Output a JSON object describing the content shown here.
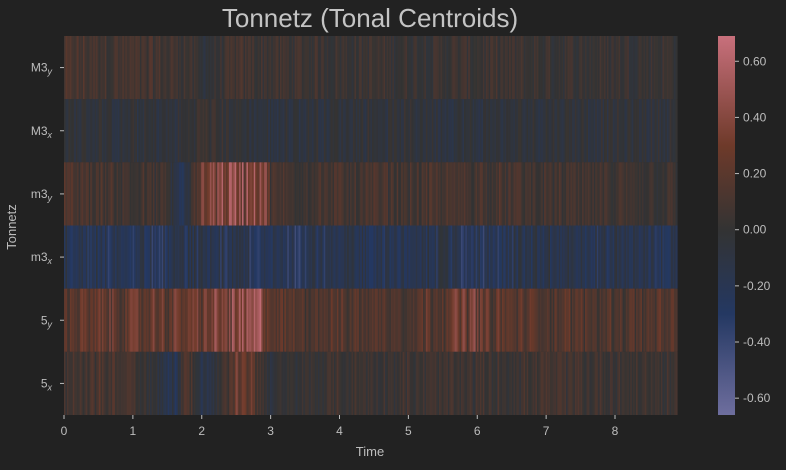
{
  "chart_data": {
    "type": "heatmap",
    "title": "Tonnetz (Tonal Centroids)",
    "xlabel": "Time",
    "ylabel": "Tonnetz",
    "xlim": [
      0,
      8.9
    ],
    "x_ticks": [
      "0",
      "1",
      "2",
      "3",
      "4",
      "5",
      "6",
      "7",
      "8"
    ],
    "x_tick_values": [
      0,
      1,
      2,
      3,
      4,
      5,
      6,
      7,
      8
    ],
    "rows": [
      {
        "base": "M3",
        "sub": "y"
      },
      {
        "base": "M3",
        "sub": "x"
      },
      {
        "base": "m3",
        "sub": "y"
      },
      {
        "base": "m3",
        "sub": "x"
      },
      {
        "base": "5",
        "sub": "y"
      },
      {
        "base": "5",
        "sub": "x"
      }
    ],
    "row_profiles": [
      [
        0,
        0.12,
        1.6,
        0.08,
        1.7,
        0.1,
        2.0,
        -0.05,
        2.5,
        0.08,
        3.0,
        0.06,
        4.0,
        0.05,
        5.0,
        0.03,
        6.0,
        0.05,
        7.0,
        0.03,
        8.9,
        0.04
      ],
      [
        0,
        -0.05,
        1.6,
        -0.08,
        2.0,
        0.05,
        3.0,
        -0.1,
        4.0,
        -0.05,
        5.0,
        -0.05,
        6.0,
        -0.08,
        7.0,
        -0.05,
        8.9,
        -0.05
      ],
      [
        0,
        0.15,
        1.5,
        0.05,
        1.7,
        -0.3,
        2.1,
        0.5,
        2.9,
        0.55,
        3.0,
        0.1,
        4.0,
        0.1,
        5.0,
        0.1,
        6.0,
        0.12,
        7.0,
        0.08,
        8.9,
        0.05
      ],
      [
        0,
        -0.25,
        1.0,
        -0.3,
        2.0,
        -0.2,
        3.0,
        -0.3,
        4.0,
        -0.25,
        5.0,
        -0.22,
        6.0,
        -0.3,
        7.0,
        -0.22,
        8.9,
        -0.25
      ],
      [
        0,
        0.25,
        1.5,
        0.3,
        2.0,
        0.35,
        2.9,
        0.55,
        3.0,
        0.2,
        4.0,
        0.2,
        5.0,
        0.18,
        6.0,
        0.4,
        6.1,
        0.25,
        7.0,
        0.2,
        8.9,
        0.18
      ],
      [
        0,
        0.1,
        1.0,
        0.15,
        1.6,
        -0.25,
        1.8,
        0.3,
        2.0,
        -0.3,
        2.6,
        0.4,
        3.0,
        -0.05,
        4.0,
        0.05,
        5.0,
        0.05,
        6.0,
        0.05,
        7.0,
        0.08,
        8.9,
        0.05
      ]
    ],
    "n_frames": 420,
    "colorbar": {
      "min": -0.66,
      "max": 0.69,
      "ticks": [
        "-0.60",
        "-0.40",
        "-0.20",
        "0.00",
        "0.20",
        "0.40",
        "0.60"
      ],
      "tick_values": [
        -0.6,
        -0.4,
        -0.2,
        0.0,
        0.2,
        0.4,
        0.6
      ],
      "stops": [
        {
          "v": -0.66,
          "color": "#6e6e9e"
        },
        {
          "v": -0.3,
          "color": "#243862"
        },
        {
          "v": 0.0,
          "color": "#333333"
        },
        {
          "v": 0.3,
          "color": "#6e3a2a"
        },
        {
          "v": 0.69,
          "color": "#c8707c"
        }
      ]
    },
    "colors": {
      "background": "#222222",
      "text": "#bdbdbd",
      "title": "#c4c4c4"
    }
  }
}
